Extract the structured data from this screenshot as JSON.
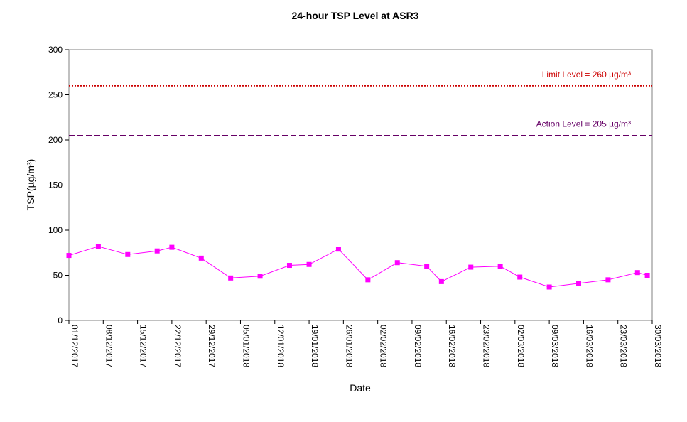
{
  "chart_data": {
    "type": "line",
    "title": "24-hour TSP Level at ASR3",
    "xlabel": "Date",
    "ylabel": "TSP(µg/m³)",
    "ylim": [
      0,
      300
    ],
    "yticks": [
      "0",
      "50",
      "100",
      "150",
      "200",
      "250",
      "300"
    ],
    "xlim": [
      "2017-12-01",
      "2018-03-30"
    ],
    "xticks": [
      {
        "date": "2017-12-01",
        "label": "01/12/2017"
      },
      {
        "date": "2017-12-08",
        "label": "08/12/2017"
      },
      {
        "date": "2017-12-15",
        "label": "15/12/2017"
      },
      {
        "date": "2017-12-22",
        "label": "22/12/2017"
      },
      {
        "date": "2017-12-29",
        "label": "29/12/2017"
      },
      {
        "date": "2018-01-05",
        "label": "05/01/2018"
      },
      {
        "date": "2018-01-12",
        "label": "12/01/2018"
      },
      {
        "date": "2018-01-19",
        "label": "19/01/2018"
      },
      {
        "date": "2018-01-26",
        "label": "26/01/2018"
      },
      {
        "date": "2018-02-02",
        "label": "02/02/2018"
      },
      {
        "date": "2018-02-09",
        "label": "09/02/2018"
      },
      {
        "date": "2018-02-16",
        "label": "16/02/2018"
      },
      {
        "date": "2018-02-23",
        "label": "23/02/2018"
      },
      {
        "date": "2018-03-02",
        "label": "02/03/2018"
      },
      {
        "date": "2018-03-09",
        "label": "09/03/2018"
      },
      {
        "date": "2018-03-16",
        "label": "16/03/2018"
      },
      {
        "date": "2018-03-23",
        "label": "23/03/2018"
      },
      {
        "date": "2018-03-30",
        "label": "30/03/2018"
      }
    ],
    "grid": false,
    "series": [
      {
        "color": "#ff00ff",
        "marker": "square",
        "points": [
          {
            "x": "2017-12-01",
            "y": 72
          },
          {
            "x": "2017-12-07",
            "y": 82
          },
          {
            "x": "2017-12-13",
            "y": 73
          },
          {
            "x": "2017-12-19",
            "y": 77
          },
          {
            "x": "2017-12-22",
            "y": 81
          },
          {
            "x": "2017-12-28",
            "y": 69
          },
          {
            "x": "2018-01-03",
            "y": 47
          },
          {
            "x": "2018-01-09",
            "y": 49
          },
          {
            "x": "2018-01-15",
            "y": 61
          },
          {
            "x": "2018-01-19",
            "y": 62
          },
          {
            "x": "2018-01-25",
            "y": 79
          },
          {
            "x": "2018-01-31",
            "y": 45
          },
          {
            "x": "2018-02-06",
            "y": 64
          },
          {
            "x": "2018-02-12",
            "y": 60
          },
          {
            "x": "2018-02-15",
            "y": 43
          },
          {
            "x": "2018-02-21",
            "y": 59
          },
          {
            "x": "2018-02-27",
            "y": 60
          },
          {
            "x": "2018-03-03",
            "y": 48
          },
          {
            "x": "2018-03-09",
            "y": 37
          },
          {
            "x": "2018-03-15",
            "y": 41
          },
          {
            "x": "2018-03-21",
            "y": 45
          },
          {
            "x": "2018-03-27",
            "y": 53
          },
          {
            "x": "2018-03-29",
            "y": 50
          }
        ]
      }
    ],
    "reference_lines": [
      {
        "label": "Limit Level = 260 µg/m³",
        "y": 260,
        "color": "#cc0000",
        "style": "dotted"
      },
      {
        "label": "Action Level = 205 µg/m³",
        "y": 205,
        "color": "#660066",
        "style": "dashed"
      }
    ]
  }
}
